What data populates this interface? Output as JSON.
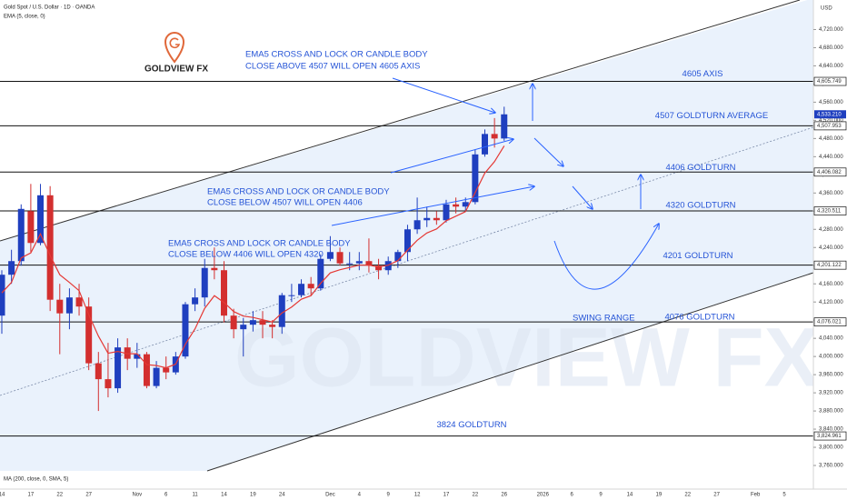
{
  "chart_data": {
    "type": "candlestick",
    "title": "Gold Spot / U.S. Dollar · 1D · OANDA",
    "currency": "USD",
    "logo_text": "GOLDVIEW FX",
    "watermark": "GOLDVIEW FX",
    "ma_legend": "MA (200, close, 0, SMA, 5)",
    "up_color": "#1f3fbf",
    "down_color": "#d32f2f",
    "x": [
      "14",
      null,
      null,
      "17",
      null,
      null,
      "22",
      null,
      null,
      "27",
      null,
      null,
      null,
      null,
      "Nov",
      null,
      null,
      "6",
      null,
      null,
      "11",
      null,
      null,
      "14",
      null,
      null,
      "19",
      null,
      null,
      "24",
      null,
      null,
      null,
      null,
      "Dec",
      null,
      null,
      "4",
      null,
      null,
      "9",
      null,
      null,
      "12",
      null,
      null,
      "17",
      null,
      null,
      "22",
      null,
      null,
      "26",
      null,
      null,
      null,
      "2026",
      null,
      null,
      "6",
      null,
      null,
      "9",
      null,
      null,
      "14",
      null,
      null,
      "19",
      null,
      null,
      "22",
      null,
      null,
      "27",
      null,
      null,
      null,
      "Feb",
      null,
      null,
      "5"
    ],
    "open": [
      4090,
      4180,
      4210,
      4320,
      4250,
      4355,
      4125,
      4095,
      4130,
      4110,
      3985,
      3950,
      3930,
      4020,
      3995,
      4005,
      3935,
      3975,
      3965,
      4000,
      4115,
      4130,
      4195,
      4190,
      4090,
      4060,
      4070,
      4080,
      4070,
      4065,
      4135,
      4135,
      4160,
      4150,
      4215,
      4230,
      4205,
      4205,
      4210,
      4200,
      4190,
      4210,
      4230,
      4280,
      4300,
      4305,
      4300,
      4335,
      4330,
      4340,
      4445,
      4490,
      4480,
      null,
      null,
      null,
      null,
      null,
      null,
      null,
      null,
      null,
      null,
      null,
      null,
      null,
      null,
      null,
      null,
      null,
      null,
      null,
      null,
      null,
      null,
      null,
      null,
      null,
      null,
      null,
      null,
      null
    ],
    "high": [
      4190,
      4235,
      4335,
      4380,
      4380,
      4375,
      4160,
      4150,
      4160,
      4130,
      4010,
      4030,
      4040,
      4040,
      4030,
      4010,
      3990,
      4000,
      4010,
      4120,
      4150,
      4215,
      4240,
      4210,
      4105,
      4085,
      4100,
      4100,
      4080,
      4140,
      4160,
      4170,
      4175,
      4225,
      4265,
      4240,
      4230,
      4230,
      4260,
      4215,
      4220,
      4235,
      4290,
      4350,
      4330,
      4320,
      4345,
      4350,
      4350,
      4455,
      4500,
      4525,
      4550,
      null,
      null,
      null,
      null,
      null,
      null,
      null,
      null,
      null,
      null,
      null,
      null,
      null,
      null,
      null,
      null,
      null,
      null,
      null,
      null,
      null,
      null,
      null,
      null,
      null,
      null,
      null,
      null,
      null
    ],
    "low": [
      4050,
      4160,
      4200,
      4230,
      4245,
      4100,
      4005,
      4060,
      4090,
      3970,
      3880,
      3910,
      3920,
      3970,
      3975,
      3930,
      3930,
      3950,
      3960,
      3995,
      4100,
      4110,
      4170,
      4075,
      4040,
      4000,
      4055,
      4040,
      4040,
      4050,
      4120,
      4130,
      4135,
      4145,
      4210,
      4200,
      4190,
      4190,
      4185,
      4170,
      4180,
      4195,
      4210,
      4270,
      4285,
      4290,
      4295,
      4315,
      4320,
      4335,
      4440,
      4460,
      4475,
      null,
      null,
      null,
      null,
      null,
      null,
      null,
      null,
      null,
      null,
      null,
      null,
      null,
      null,
      null,
      null,
      null,
      null,
      null,
      null,
      null,
      null,
      null,
      null,
      null,
      null,
      null,
      null,
      null
    ],
    "close": [
      4180,
      4210,
      4325,
      4250,
      4355,
      4125,
      4095,
      4130,
      4110,
      3985,
      3950,
      3930,
      4020,
      3995,
      4005,
      3935,
      3975,
      3965,
      4000,
      4115,
      4130,
      4195,
      4190,
      4090,
      4060,
      4070,
      4080,
      4070,
      4065,
      4135,
      4135,
      4160,
      4150,
      4215,
      4230,
      4205,
      4205,
      4210,
      4200,
      4190,
      4210,
      4230,
      4280,
      4300,
      4305,
      4300,
      4335,
      4330,
      4340,
      4445,
      4490,
      4480,
      4533.21,
      null,
      null,
      null,
      null,
      null,
      null,
      null,
      null,
      null,
      null,
      null,
      null,
      null,
      null,
      null,
      null,
      null,
      null,
      null,
      null,
      null,
      null,
      null,
      null,
      null,
      null,
      null,
      null,
      null
    ],
    "series": [
      {
        "name": "EMA (5, close, 0)",
        "color": "#e53935",
        "values": [
          4140,
          4163,
          4217,
          4228,
          4270,
          4222,
          4180,
          4163,
          4145,
          4092,
          4045,
          4007,
          4011,
          4006,
          4006,
          3982,
          3980,
          3975,
          3983,
          4027,
          4061,
          4106,
          4134,
          4119,
          4099,
          4089,
          4086,
          4081,
          4076,
          4096,
          4109,
          4126,
          4134,
          4161,
          4184,
          4191,
          4196,
          4201,
          4201,
          4197,
          4201,
          4211,
          4234,
          4256,
          4272,
          4281,
          4299,
          4309,
          4319,
          4361,
          4404,
          4429,
          4464,
          null,
          null,
          null,
          null,
          null,
          null,
          null,
          null,
          null,
          null,
          null,
          null,
          null,
          null,
          null,
          null,
          null,
          null,
          null,
          null,
          null,
          null,
          null,
          null,
          null,
          null,
          null,
          null,
          null
        ]
      }
    ],
    "ylim": [
      3708,
      4785
    ],
    "yticks": [
      {
        "value": 3760,
        "label": "3,760.000"
      },
      {
        "value": 3800,
        "label": "3,800.000"
      },
      {
        "value": 3840,
        "label": "3,840.000"
      },
      {
        "value": 3880,
        "label": "3,880.000"
      },
      {
        "value": 3920,
        "label": "3,920.000"
      },
      {
        "value": 3960,
        "label": "3,960.000"
      },
      {
        "value": 4000,
        "label": "4,000.000"
      },
      {
        "value": 4040,
        "label": "4,040.000"
      },
      {
        "value": 4080,
        "label": "4,080.000"
      },
      {
        "value": 4120,
        "label": "4,120.000"
      },
      {
        "value": 4160,
        "label": "4,160.000"
      },
      {
        "value": 4200,
        "label": "4,200.000"
      },
      {
        "value": 4240,
        "label": "4,240.000"
      },
      {
        "value": 4280,
        "label": "4,280.000"
      },
      {
        "value": 4320,
        "label": "4,320.000"
      },
      {
        "value": 4360,
        "label": "4,360.000"
      },
      {
        "value": 4400,
        "label": "4,400.000"
      },
      {
        "value": 4440,
        "label": "4,440.000"
      },
      {
        "value": 4480,
        "label": "4,480.000"
      },
      {
        "value": 4520,
        "label": "4,520.000"
      },
      {
        "value": 4560,
        "label": "4,560.000"
      },
      {
        "value": 4600,
        "label": "4,600.000"
      },
      {
        "value": 4640,
        "label": "4,640.000"
      },
      {
        "value": 4680,
        "label": "4,680.000"
      },
      {
        "value": 4720,
        "label": "4,720.000"
      }
    ],
    "levels": [
      {
        "value": 4605.749,
        "label": "4,605.749",
        "name": "4605 AXIS"
      },
      {
        "value": 4507.953,
        "label": "4,507.953",
        "name": "4507 GOLDTURN AVERAGE"
      },
      {
        "value": 4406.082,
        "label": "4,406.082",
        "name": "4406 GOLDTURN"
      },
      {
        "value": 4320.511,
        "label": "4,320.511",
        "name": "4320 GOLDTURN"
      },
      {
        "value": 4201.122,
        "label": "4,201.122",
        "name": "4201 GOLDTURN"
      },
      {
        "value": 4076.021,
        "label": "4,076.021",
        "name": "4076 GOLDTURN"
      },
      {
        "value": 3824.961,
        "label": "3,824.961",
        "name": "3824 GOLDTURN"
      }
    ],
    "last_price": {
      "value": 4533.21,
      "label": "4,533.210"
    },
    "swing_label": "SWING RANGE",
    "annotations": [
      [
        "EMA5 CROSS AND LOCK OR CANDLE BODY",
        "CLOSE ABOVE 4507 WILL OPEN 4605 AXIS"
      ],
      [
        "EMA5 CROSS AND LOCK OR CANDLE BODY",
        "CLOSE BELOW 4507 WILL OPEN 4406"
      ],
      [
        "EMA5 CROSS AND LOCK OR CANDLE BODY",
        "CLOSE BELOW 4406 WILL OPEN 4320"
      ]
    ]
  }
}
